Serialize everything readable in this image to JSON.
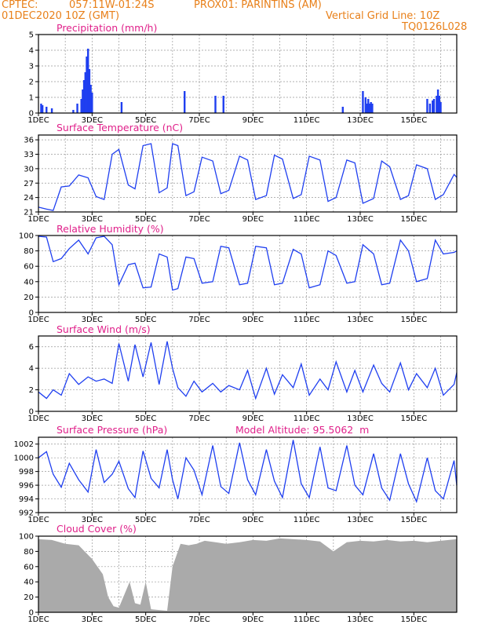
{
  "header": {
    "left_line1": "CPTEC:",
    "coords": "057:11W-01:24S",
    "station": "PROX01: PARINTINS (AM)",
    "date": "01DEC2020 10Z (GMT)",
    "vgrid": "Vertical Grid Line: 10Z",
    "code": "TQ0126L028"
  },
  "colors": {
    "title": "#e0208a",
    "header": "#e8801a",
    "series": "#1f3ff0",
    "cloud": "#aaaaaa"
  },
  "chart_data": [
    {
      "type": "bar",
      "title": "Precipitation (mm/h)",
      "ylim": [
        0,
        5
      ],
      "yticks": [
        "0",
        "1",
        "2",
        "3",
        "4",
        "5"
      ],
      "xticks": [
        "1DEC",
        "3DEC",
        "5DEC",
        "7DEC",
        "9DEC",
        "11DEC",
        "13DEC",
        "15DEC"
      ],
      "x_days": [
        0.1,
        0.15,
        0.3,
        0.5,
        1.3,
        1.45,
        1.6,
        1.65,
        1.7,
        1.75,
        1.8,
        1.85,
        1.9,
        1.95,
        2.0,
        3.1,
        5.45,
        6.6,
        6.9,
        11.35,
        12.1,
        12.2,
        12.25,
        12.3,
        12.35,
        12.4,
        12.45,
        14.5,
        14.6,
        14.7,
        14.75,
        14.85,
        14.9,
        14.95,
        15.0
      ],
      "values": [
        0.6,
        0.5,
        0.4,
        0.3,
        0.2,
        0.6,
        0.9,
        1.5,
        2.1,
        2.6,
        3.6,
        4.1,
        2.8,
        1.8,
        1.3,
        0.7,
        1.4,
        1.1,
        1.1,
        0.4,
        1.4,
        1.0,
        0.6,
        0.9,
        0.6,
        0.7,
        0.6,
        0.9,
        0.6,
        0.8,
        0.9,
        1.1,
        1.5,
        1.1,
        0.7
      ]
    },
    {
      "type": "line",
      "title": "Surface Temperature (nC)",
      "ylim": [
        21,
        37
      ],
      "yticks": [
        "21",
        "24",
        "27",
        "30",
        "33",
        "36"
      ],
      "xticks": [
        "1DEC",
        "3DEC",
        "5DEC",
        "7DEC",
        "9DEC",
        "11DEC",
        "13DEC",
        "15DEC"
      ],
      "x": [
        0,
        0.3,
        0.55,
        0.85,
        1.15,
        1.5,
        1.85,
        2.15,
        2.45,
        2.75,
        3.0,
        3.35,
        3.6,
        3.9,
        4.2,
        4.5,
        4.8,
        5.0,
        5.2,
        5.5,
        5.8,
        6.1,
        6.5,
        6.8,
        7.1,
        7.5,
        7.8,
        8.1,
        8.5,
        8.8,
        9.1,
        9.5,
        9.8,
        10.1,
        10.5,
        10.8,
        11.1,
        11.5,
        11.8,
        12.1,
        12.5,
        12.8,
        13.1,
        13.5,
        13.8,
        14.1,
        14.5,
        14.8,
        15.1,
        15.5,
        15.6
      ],
      "values": [
        22.0,
        21.6,
        21.3,
        26.2,
        26.4,
        28.7,
        28.1,
        24.2,
        23.6,
        33.0,
        34.0,
        26.6,
        25.8,
        34.8,
        35.2,
        25.0,
        26.0,
        35.2,
        34.8,
        24.4,
        25.2,
        32.4,
        31.6,
        24.8,
        25.5,
        32.6,
        31.8,
        23.6,
        24.4,
        32.8,
        32.0,
        23.8,
        24.6,
        32.6,
        31.8,
        23.2,
        24.0,
        31.8,
        31.2,
        22.8,
        23.8,
        31.6,
        30.4,
        23.6,
        24.4,
        30.8,
        30.0,
        23.6,
        24.6,
        28.8,
        28.2
      ]
    },
    {
      "type": "line",
      "title": "Relative Humidity (%)",
      "ylim": [
        0,
        100
      ],
      "yticks": [
        "0",
        "20",
        "40",
        "60",
        "80",
        "100"
      ],
      "xticks": [
        "1DEC",
        "3DEC",
        "5DEC",
        "7DEC",
        "9DEC",
        "11DEC",
        "13DEC",
        "15DEC"
      ],
      "x": [
        0,
        0.3,
        0.55,
        0.85,
        1.15,
        1.5,
        1.85,
        2.15,
        2.45,
        2.75,
        3.0,
        3.35,
        3.6,
        3.9,
        4.2,
        4.5,
        4.8,
        5.0,
        5.2,
        5.5,
        5.8,
        6.1,
        6.5,
        6.8,
        7.1,
        7.5,
        7.8,
        8.1,
        8.5,
        8.8,
        9.1,
        9.5,
        9.8,
        10.1,
        10.5,
        10.8,
        11.1,
        11.5,
        11.8,
        12.1,
        12.5,
        12.8,
        13.1,
        13.5,
        13.8,
        14.1,
        14.5,
        14.8,
        15.1,
        15.5,
        15.6
      ],
      "values": [
        99,
        98,
        66,
        70,
        83,
        94,
        76,
        97,
        99,
        88,
        36,
        62,
        64,
        32,
        33,
        76,
        72,
        29,
        31,
        72,
        70,
        38,
        40,
        86,
        84,
        36,
        38,
        86,
        84,
        36,
        38,
        82,
        76,
        32,
        36,
        80,
        74,
        38,
        40,
        88,
        76,
        36,
        38,
        94,
        80,
        40,
        44,
        94,
        76,
        78,
        80
      ]
    },
    {
      "type": "line",
      "title": "Surface Wind (m/s)",
      "ylim": [
        0,
        7
      ],
      "yticks": [
        "0",
        "2",
        "4",
        "6"
      ],
      "xticks": [
        "1DEC",
        "3DEC",
        "5DEC",
        "7DEC",
        "9DEC",
        "11DEC",
        "13DEC",
        "15DEC"
      ],
      "x": [
        0,
        0.3,
        0.55,
        0.85,
        1.15,
        1.5,
        1.85,
        2.15,
        2.45,
        2.75,
        3.0,
        3.35,
        3.6,
        3.9,
        4.2,
        4.5,
        4.8,
        5.0,
        5.2,
        5.5,
        5.8,
        6.1,
        6.5,
        6.8,
        7.1,
        7.5,
        7.8,
        8.1,
        8.5,
        8.8,
        9.1,
        9.5,
        9.8,
        10.1,
        10.5,
        10.8,
        11.1,
        11.5,
        11.8,
        12.1,
        12.5,
        12.8,
        13.1,
        13.5,
        13.8,
        14.1,
        14.5,
        14.8,
        15.1,
        15.5,
        15.6
      ],
      "values": [
        1.8,
        1.2,
        2.0,
        1.5,
        3.5,
        2.5,
        3.2,
        2.8,
        3.0,
        2.6,
        6.3,
        2.8,
        6.2,
        3.2,
        6.4,
        2.5,
        6.5,
        4.0,
        2.2,
        1.4,
        2.8,
        1.8,
        2.6,
        1.8,
        2.4,
        2.0,
        3.8,
        1.2,
        4.0,
        1.6,
        3.4,
        2.2,
        4.4,
        1.5,
        3.0,
        2.0,
        4.6,
        1.8,
        3.8,
        1.8,
        4.3,
        2.6,
        1.8,
        4.5,
        2.0,
        3.5,
        2.2,
        4.0,
        1.5,
        2.5,
        3.6
      ]
    },
    {
      "type": "line",
      "title": "Surface Pressure (hPa)",
      "annotation": "Model Altitude: 95.5062  m",
      "ylim": [
        992,
        1003
      ],
      "yticks": [
        "992",
        "994",
        "996",
        "998",
        "1000",
        "1002"
      ],
      "xticks": [
        "1DEC",
        "3DEC",
        "5DEC",
        "7DEC",
        "9DEC",
        "11DEC",
        "13DEC",
        "15DEC"
      ],
      "x": [
        0,
        0.3,
        0.55,
        0.85,
        1.15,
        1.5,
        1.85,
        2.15,
        2.45,
        2.75,
        3.0,
        3.35,
        3.6,
        3.9,
        4.2,
        4.5,
        4.8,
        5.0,
        5.2,
        5.5,
        5.8,
        6.1,
        6.5,
        6.8,
        7.1,
        7.5,
        7.8,
        8.1,
        8.5,
        8.8,
        9.1,
        9.5,
        9.8,
        10.1,
        10.5,
        10.8,
        11.1,
        11.5,
        11.8,
        12.1,
        12.5,
        12.8,
        13.1,
        13.5,
        13.8,
        14.1,
        14.5,
        14.8,
        15.1,
        15.5,
        15.6
      ],
      "values": [
        1000.0,
        1000.9,
        997.6,
        995.7,
        999.2,
        996.8,
        995.0,
        1001.2,
        996.4,
        997.6,
        999.5,
        995.5,
        994.2,
        1001.0,
        997.0,
        995.6,
        1001.2,
        996.8,
        994.0,
        1000.0,
        998.2,
        994.6,
        1001.8,
        995.8,
        994.8,
        1002.2,
        996.8,
        994.6,
        1001.2,
        996.6,
        994.2,
        1002.6,
        996.2,
        994.2,
        1001.6,
        995.6,
        995.2,
        1001.8,
        996.0,
        994.6,
        1000.6,
        995.6,
        993.8,
        1000.6,
        996.2,
        993.6,
        1000.0,
        995.2,
        994.0,
        999.6,
        996.0
      ]
    },
    {
      "type": "area",
      "title": "Cloud Cover (%)",
      "ylim": [
        0,
        100
      ],
      "yticks": [
        "0",
        "20",
        "40",
        "60",
        "80",
        "100"
      ],
      "xticks": [
        "1DEC",
        "3DEC",
        "5DEC",
        "7DEC",
        "9DEC",
        "11DEC",
        "13DEC",
        "15DEC"
      ],
      "x": [
        0,
        0.5,
        1.0,
        1.5,
        2.0,
        2.4,
        2.6,
        2.8,
        3.0,
        3.4,
        3.6,
        3.8,
        4.0,
        4.2,
        4.5,
        4.8,
        5.0,
        5.3,
        5.6,
        5.9,
        6.2,
        6.6,
        7.0,
        7.5,
        8.0,
        8.5,
        9.0,
        9.5,
        10.0,
        10.5,
        11.0,
        11.5,
        12.0,
        12.5,
        13.0,
        13.5,
        14.0,
        14.5,
        15.0,
        15.6
      ],
      "values": [
        96,
        95,
        90,
        88,
        70,
        50,
        20,
        8,
        6,
        40,
        12,
        10,
        40,
        4,
        3,
        2,
        60,
        90,
        88,
        90,
        94,
        92,
        90,
        92,
        95,
        94,
        97,
        96,
        95,
        93,
        80,
        92,
        94,
        93,
        95,
        93,
        94,
        92,
        94,
        96
      ]
    }
  ]
}
